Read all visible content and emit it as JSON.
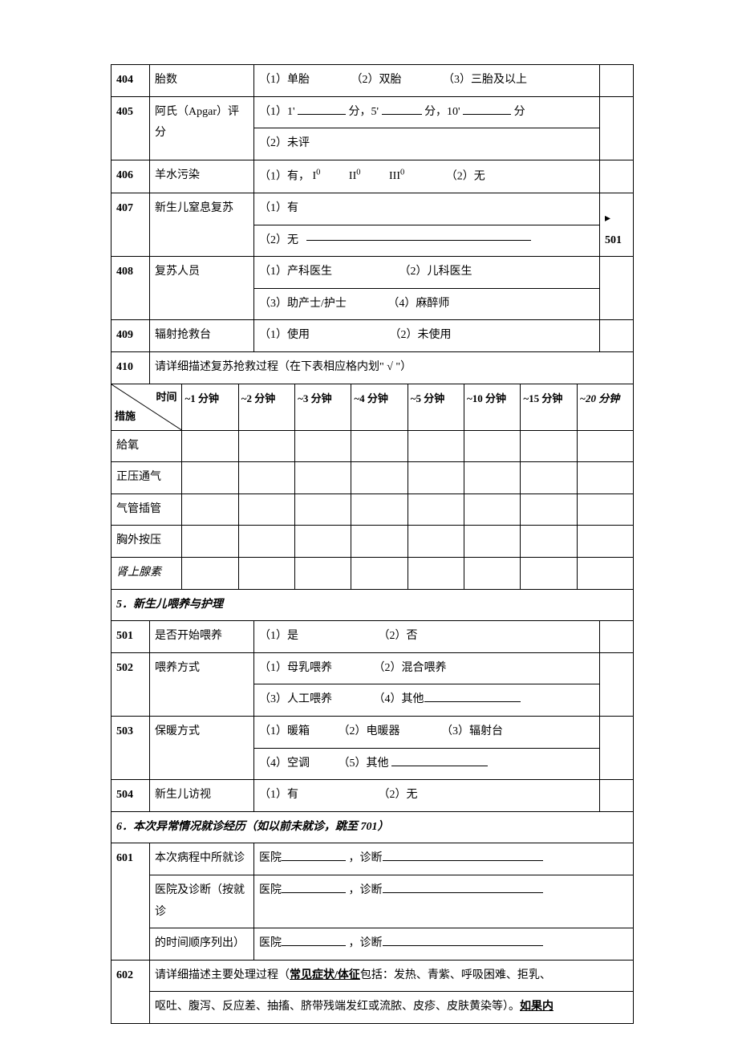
{
  "rows404": {
    "code": "404",
    "label": "胎数",
    "opt1": "（1）单胎",
    "opt2": "（2）双胎",
    "opt3": "（3）三胎及以上"
  },
  "rows405": {
    "code": "405",
    "label": "阿氏（Apgar）评分",
    "line1_pre": "（1）1'",
    "line1_mid1": "分，5'",
    "line1_mid2": "分，10'",
    "line1_end": "分",
    "line2": "（2）未评"
  },
  "rows406": {
    "code": "406",
    "label": "羊水污染",
    "pre": "（1）有，",
    "d1": "I",
    "d2": "II",
    "d3": "III",
    "sup": "0",
    "opt2": "（2）无"
  },
  "rows407": {
    "code": "407",
    "label": "新生儿窒息复苏",
    "opt1": "（1）有",
    "opt2": "（2）无",
    "jump": "501"
  },
  "rows408": {
    "code": "408",
    "label": "复苏人员",
    "opt1": "（1）产科医生",
    "opt2": "（2）儿科医生",
    "opt3": "（3）助产士/护士",
    "opt4": "（4）麻醉师"
  },
  "rows409": {
    "code": "409",
    "label": "辐射抢救台",
    "opt1": "（1）使用",
    "opt2": "（2）未使用"
  },
  "rows410": {
    "code": "410",
    "text": "请详细描述复苏抢救过程（在下表相应格内划\" √ \"）"
  },
  "timeTable": {
    "diagTop": "时间",
    "diagBottom": "措施",
    "cols": [
      "~1 分钟",
      "~2 分钟",
      "~3 分钟",
      "~4 分钟",
      "~5 分钟",
      "~10 分钟",
      "~15 分钟",
      "~20 分钟"
    ],
    "rows": [
      "給氧",
      "正压通气",
      "气管插管",
      "胸外按压",
      "肾上腺素"
    ]
  },
  "section5": {
    "title": "5．新生儿喂养与护理"
  },
  "rows501": {
    "code": "501",
    "label": "是否开始喂养",
    "opt1": "（1）是",
    "opt2": "（2）否"
  },
  "rows502": {
    "code": "502",
    "label": "喂养方式",
    "opt1": "（1）母乳喂养",
    "opt2": "（2）混合喂养",
    "opt3": "（3）人工喂养",
    "opt4": "（4）其他"
  },
  "rows503": {
    "code": "503",
    "label": "保暖方式",
    "opt1": "（1）暖箱",
    "opt2": "（2）电暖器",
    "opt3": "（3）辐射台",
    "opt4": "（4）空调",
    "opt5": "（5）其他"
  },
  "rows504": {
    "code": "504",
    "label": "新生儿访视",
    "opt1": "（1）有",
    "opt2": "（2）无"
  },
  "section6": {
    "title": "6．本次异常情况就诊经历（如以前未就诊，跳至 701）"
  },
  "rows601": {
    "code": "601",
    "label1": "本次病程中所就诊",
    "label2": "医院及诊断（按就诊",
    "label3": "的时间顺序列出）",
    "hosp": "医院",
    "diag": "，诊断"
  },
  "rows602": {
    "code": "602",
    "pre": "请详细描述主要处理过程（",
    "u1": "常见症状/体征",
    "mid1": "包括：发热、青紫、呼吸困难、拒乳、",
    "mid2": "呕吐、腹泻、反应差、抽搐、脐带残端发红或流脓、皮疹、皮肤黄染等）。",
    "u2": "如果内"
  }
}
